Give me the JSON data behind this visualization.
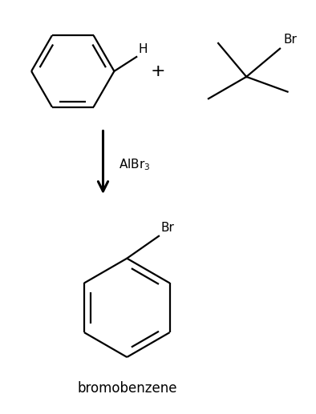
{
  "bg_color": "#ffffff",
  "line_color": "#000000",
  "fig_width": 3.94,
  "fig_height": 5.17,
  "dpi": 100,
  "catalyst_label": "AlBr$_3$",
  "product_label": "bromobenzene",
  "h_label": "H",
  "br_label1": "Br",
  "br_label2": "Br",
  "plus_sign": "+",
  "font_size_label": 11,
  "font_size_product": 12,
  "lw": 1.6
}
